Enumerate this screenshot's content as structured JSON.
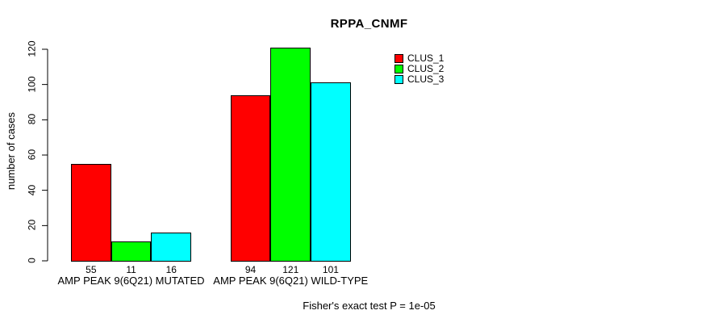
{
  "chart_data": {
    "type": "bar",
    "title": "RPPA_CNMF",
    "ylabel": "number of cases",
    "footnote": "Fisher's exact test P = 1e-05",
    "categories": [
      "AMP PEAK 9(6Q21) MUTATED",
      "AMP PEAK 9(6Q21) WILD-TYPE"
    ],
    "category_keys": [
      "mutated",
      "wild-type"
    ],
    "series": [
      {
        "name": "CLUS_1",
        "color": "#ff0000",
        "values": [
          55,
          94
        ]
      },
      {
        "name": "CLUS_2",
        "color": "#00ff00",
        "values": [
          11,
          121
        ]
      },
      {
        "name": "CLUS_3",
        "color": "#00ffff",
        "values": [
          16,
          101
        ]
      }
    ],
    "yticks": [
      0,
      20,
      40,
      60,
      80,
      100,
      120
    ],
    "ylim": [
      0,
      120
    ],
    "grid": false,
    "bar_border_color": "#000000",
    "legend": {
      "position": "top-right",
      "entries": [
        "CLUS_1",
        "CLUS_2",
        "CLUS_3"
      ]
    }
  }
}
